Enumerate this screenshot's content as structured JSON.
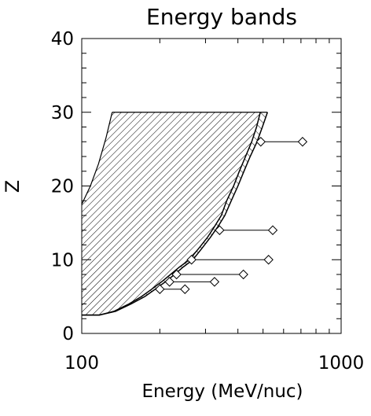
{
  "chart_data": {
    "type": "scatter",
    "title": "Energy bands",
    "xlabel": "Energy (MeV/nuc)",
    "ylabel": "Z",
    "x_scale": "log",
    "xlim": [
      100,
      1000
    ],
    "ylim": [
      0,
      40
    ],
    "x_ticks": [
      100,
      1000
    ],
    "x_tick_labels": [
      "100",
      "1000"
    ],
    "y_ticks": [
      0,
      10,
      20,
      30,
      40
    ],
    "y_tick_labels": [
      "0",
      "10",
      "20",
      "30",
      "40"
    ],
    "grid": false,
    "legend": "none",
    "inner_band": [
      {
        "x": 100,
        "y": 2.5
      },
      {
        "x": 117,
        "y": 2.5
      },
      {
        "x": 133,
        "y": 3
      },
      {
        "x": 152,
        "y": 4
      },
      {
        "x": 170,
        "y": 5
      },
      {
        "x": 186,
        "y": 6
      },
      {
        "x": 203,
        "y": 7
      },
      {
        "x": 220,
        "y": 8
      },
      {
        "x": 238,
        "y": 9
      },
      {
        "x": 260,
        "y": 10
      },
      {
        "x": 282,
        "y": 11.5
      },
      {
        "x": 305,
        "y": 13
      },
      {
        "x": 325,
        "y": 14.5
      },
      {
        "x": 345,
        "y": 16
      },
      {
        "x": 362,
        "y": 18
      },
      {
        "x": 385,
        "y": 20
      },
      {
        "x": 405,
        "y": 22
      },
      {
        "x": 428,
        "y": 24
      },
      {
        "x": 452,
        "y": 26
      },
      {
        "x": 472,
        "y": 28
      },
      {
        "x": 488,
        "y": 30
      }
    ],
    "outer_band": [
      {
        "x": 100,
        "y": 2.5
      },
      {
        "x": 117,
        "y": 2.5
      },
      {
        "x": 135,
        "y": 3
      },
      {
        "x": 155,
        "y": 4
      },
      {
        "x": 175,
        "y": 5
      },
      {
        "x": 192,
        "y": 6
      },
      {
        "x": 210,
        "y": 7
      },
      {
        "x": 228,
        "y": 8
      },
      {
        "x": 246,
        "y": 9
      },
      {
        "x": 268,
        "y": 10
      },
      {
        "x": 290,
        "y": 11.5
      },
      {
        "x": 313,
        "y": 13
      },
      {
        "x": 335,
        "y": 14.5
      },
      {
        "x": 356,
        "y": 16
      },
      {
        "x": 377,
        "y": 18
      },
      {
        "x": 400,
        "y": 20
      },
      {
        "x": 422,
        "y": 22
      },
      {
        "x": 446,
        "y": 24
      },
      {
        "x": 474,
        "y": 26
      },
      {
        "x": 497,
        "y": 28
      },
      {
        "x": 520,
        "y": 30
      }
    ],
    "band_upper_edge": [
      {
        "x": 100,
        "y": 17.5
      },
      {
        "x": 108,
        "y": 20
      },
      {
        "x": 116,
        "y": 23
      },
      {
        "x": 124,
        "y": 26.5
      },
      {
        "x": 131,
        "y": 30
      }
    ],
    "band_top": 30,
    "ranges": [
      {
        "z": 6,
        "x_min": 200,
        "x_max": 250
      },
      {
        "z": 7,
        "x_min": 218,
        "x_max": 325
      },
      {
        "z": 8,
        "x_min": 232,
        "x_max": 420
      },
      {
        "z": 10,
        "x_min": 265,
        "x_max": 525
      },
      {
        "z": 14,
        "x_min": 340,
        "x_max": 545
      },
      {
        "z": 26,
        "x_min": 490,
        "x_max": 710
      }
    ]
  }
}
